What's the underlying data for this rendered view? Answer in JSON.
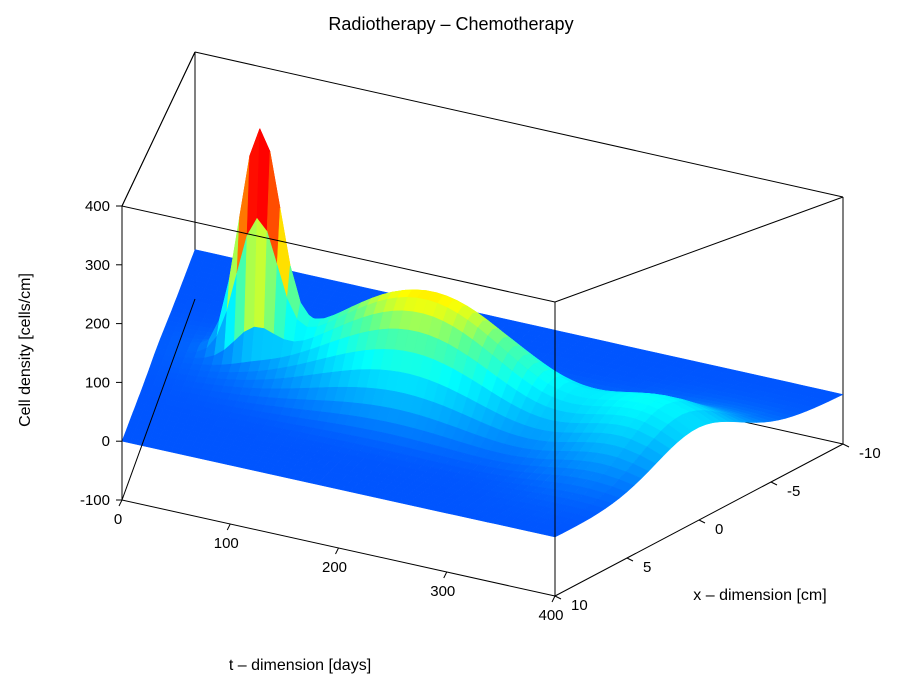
{
  "chart": {
    "type": "3d-surface",
    "title": "Radiotherapy – Chemotherapy",
    "title_fontsize": 18,
    "background_color": "#ffffff",
    "box_line_color": "#000000",
    "box_line_width": 1.0,
    "tick_fontsize": 15,
    "label_fontsize": 16,
    "axes": {
      "x": {
        "label": "t – dimension [days]",
        "min": 0,
        "max": 400,
        "ticks": [
          0,
          100,
          200,
          300,
          400
        ]
      },
      "y": {
        "label": "x – dimension [cm]",
        "min": -10,
        "max": 10,
        "ticks": [
          -10,
          -5,
          0,
          5,
          10
        ]
      },
      "z": {
        "label": "Cell density [cells/cm]",
        "min": -100,
        "max": 400,
        "ticks": [
          -100,
          0,
          100,
          200,
          300,
          400
        ]
      }
    },
    "projection": {
      "box_corners_2d": {
        "front_bl": [
          122,
          500
        ],
        "front_br": [
          555,
          596
        ],
        "front_tl": [
          122,
          206
        ],
        "front_tr": [
          555,
          302
        ],
        "back_bl": [
          195,
          299
        ],
        "back_br": [
          843,
          444
        ],
        "back_tl": [
          195,
          52
        ],
        "back_tr": [
          843,
          197
        ]
      }
    },
    "colormap": {
      "name": "jet",
      "stops": [
        {
          "v": -100,
          "c": "#00007f"
        },
        {
          "v": -50,
          "c": "#0000ff"
        },
        {
          "v": 0,
          "c": "#0055ff"
        },
        {
          "v": 50,
          "c": "#00aaff"
        },
        {
          "v": 100,
          "c": "#00ffff"
        },
        {
          "v": 150,
          "c": "#55ff99"
        },
        {
          "v": 200,
          "c": "#ffff00"
        },
        {
          "v": 250,
          "c": "#ff9900"
        },
        {
          "v": 300,
          "c": "#ff4400"
        },
        {
          "v": 350,
          "c": "#ff0000"
        },
        {
          "v": 400,
          "c": "#7f0000"
        }
      ]
    },
    "surface": {
      "t_grid": [
        0,
        15,
        30,
        45,
        60,
        75,
        90,
        105,
        120,
        135,
        150,
        165,
        180,
        195,
        210,
        225,
        240,
        255,
        270,
        285,
        300,
        315,
        330,
        345,
        360,
        375,
        400
      ],
      "y_grid": [
        -10,
        -9,
        -8,
        -7,
        -6,
        -5,
        -4,
        -3,
        -2,
        -1,
        0,
        1,
        2,
        3,
        4,
        5,
        6,
        7,
        8,
        9,
        10
      ],
      "peaks": [
        {
          "t": 75,
          "y": 0,
          "z_max": 400,
          "sigma_t": 15,
          "sigma_y": 0.5
        },
        {
          "t": 200,
          "y": 0,
          "z_max": 210,
          "sigma_t": 70,
          "sigma_y": 2.0
        },
        {
          "t": 370,
          "y": 0,
          "z_max": 90,
          "sigma_t": 40,
          "sigma_y": 3.0
        }
      ],
      "baseline_z": 0
    }
  }
}
